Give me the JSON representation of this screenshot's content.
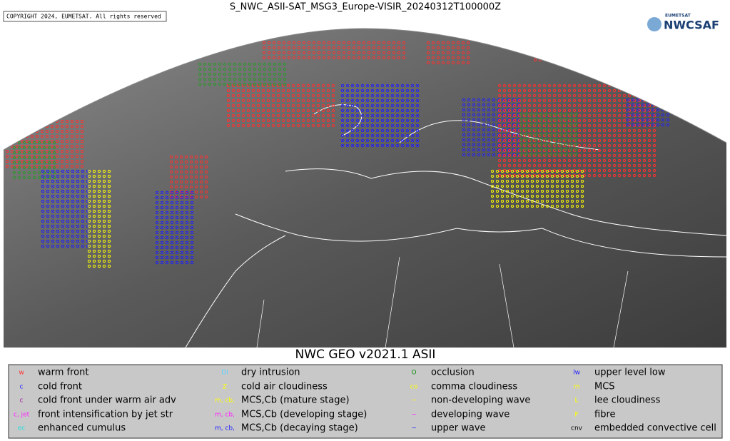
{
  "header": {
    "title": "S_NWC_ASII-SAT_MSG3_Europe-VISIR_20240312T100000Z",
    "copyright": "COPYRIGHT 2024, EUMETSAT. All rights reserved",
    "logo_top": "EUMETSAT",
    "logo_main": "NWCSAF"
  },
  "subtitle": "NWC GEO v2021.1 ASII",
  "legend": {
    "items": [
      {
        "symbol": "w",
        "label": "warm front",
        "color": "#ff3030"
      },
      {
        "symbol": "c",
        "label": "cold front",
        "color": "#2020ff"
      },
      {
        "symbol": "c",
        "label": "cold front under warm air adv",
        "color": "#a020a0"
      },
      {
        "symbol": "c, jet",
        "label": "front intensification by jet str",
        "color": "#ff20ff"
      },
      {
        "symbol": "ec",
        "label": "enhanced cumulus",
        "color": "#20e0e0"
      },
      {
        "symbol": "DI",
        "label": "dry intrusion",
        "color": "#60d0ff"
      },
      {
        "symbol": "Z",
        "label": "cold air cloudiness",
        "color": "#ffff00"
      },
      {
        "symbol": "m, cb,",
        "label": "MCS,Cb (mature stage)",
        "color": "#ffff00"
      },
      {
        "symbol": "m, cb,",
        "label": "MCS,Cb (developing stage)",
        "color": "#ff20ff"
      },
      {
        "symbol": "m, cb,",
        "label": "MCS,Cb (decaying stage)",
        "color": "#2020ff"
      },
      {
        "symbol": "O",
        "label": "occlusion",
        "color": "#109010"
      },
      {
        "symbol": "co",
        "label": "comma cloudiness",
        "color": "#ffff00"
      },
      {
        "symbol": "~",
        "label": "non-developing wave",
        "color": "#ffff00"
      },
      {
        "symbol": "~",
        "label": "developing wave",
        "color": "#ff20ff"
      },
      {
        "symbol": "~",
        "label": "upper wave",
        "color": "#2020ff"
      },
      {
        "symbol": "lw",
        "label": "upper level low",
        "color": "#2020ff"
      },
      {
        "symbol": "m",
        "label": "MCS",
        "color": "#ffff00"
      },
      {
        "symbol": "L",
        "label": "lee cloudiness",
        "color": "#ffff00"
      },
      {
        "symbol": "F",
        "label": "fibre",
        "color": "#ffff00"
      },
      {
        "symbol": "cnv",
        "label": "embedded convective cell",
        "color": "#000000"
      }
    ]
  }
}
